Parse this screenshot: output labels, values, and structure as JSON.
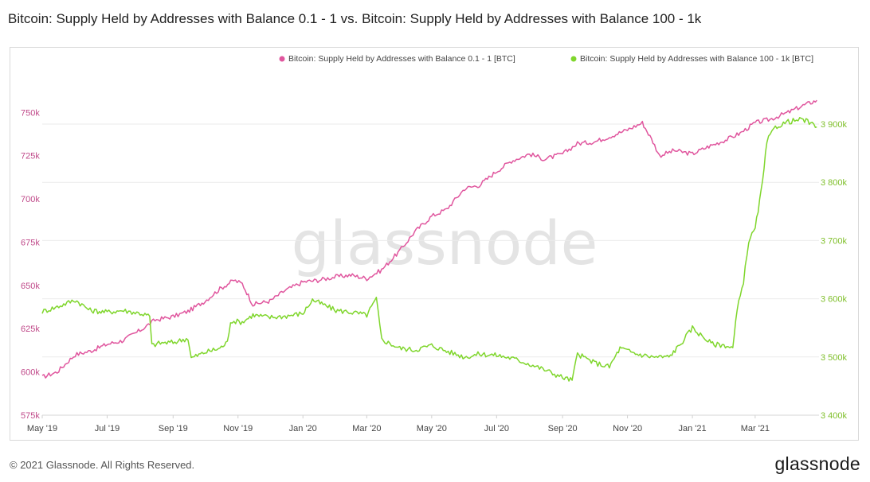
{
  "page": {
    "title": "Bitcoin: Supply Held by Addresses with Balance 0.1 - 1 vs. Bitcoin: Supply Held by Addresses with Balance 100 - 1k",
    "watermark": "glassnode",
    "copyright": "© 2021 Glassnode. All Rights Reserved.",
    "logo": "glassnode"
  },
  "chart_data": {
    "type": "line",
    "x_ticks": [
      "May '19",
      "Jul '19",
      "Sep '19",
      "Nov '19",
      "Jan '20",
      "Mar '20",
      "May '20",
      "Jul '20",
      "Sep '20",
      "Nov '20",
      "Jan '21",
      "Mar '21"
    ],
    "x_range": [
      "2019-05-01",
      "2021-04-30"
    ],
    "y_left": {
      "ticks": [
        "575k",
        "600k",
        "625k",
        "650k",
        "675k",
        "700k",
        "725k",
        "750k"
      ],
      "range": [
        575000,
        752000
      ]
    },
    "y_right": {
      "ticks": [
        "3 400k",
        "3 500k",
        "3 600k",
        "3 700k",
        "3 800k",
        "3 900k"
      ],
      "range": [
        3400000,
        3900000
      ]
    },
    "grid": true,
    "legend_position": "top-right",
    "series": [
      {
        "name": "Bitcoin: Supply Held by Addresses with Balance 0.1 - 1 [BTC]",
        "axis": "left",
        "color": "#e0569e",
        "points": [
          [
            "2019-05-01",
            597000
          ],
          [
            "2019-05-15",
            600000
          ],
          [
            "2019-06-01",
            610000
          ],
          [
            "2019-06-15",
            612000
          ],
          [
            "2019-07-01",
            616000
          ],
          [
            "2019-07-15",
            618000
          ],
          [
            "2019-08-01",
            624000
          ],
          [
            "2019-08-15",
            630000
          ],
          [
            "2019-09-01",
            632000
          ],
          [
            "2019-09-15",
            635000
          ],
          [
            "2019-10-01",
            641000
          ],
          [
            "2019-10-15",
            648000
          ],
          [
            "2019-10-28",
            653000
          ],
          [
            "2019-11-05",
            651000
          ],
          [
            "2019-11-15",
            639000
          ],
          [
            "2019-12-01",
            641000
          ],
          [
            "2019-12-15",
            647000
          ],
          [
            "2020-01-01",
            652000
          ],
          [
            "2020-01-15",
            653000
          ],
          [
            "2020-02-01",
            655000
          ],
          [
            "2020-02-15",
            656000
          ],
          [
            "2020-03-01",
            654000
          ],
          [
            "2020-03-15",
            659000
          ],
          [
            "2020-04-01",
            670000
          ],
          [
            "2020-04-15",
            681000
          ],
          [
            "2020-05-01",
            690000
          ],
          [
            "2020-05-15",
            694000
          ],
          [
            "2020-06-01",
            706000
          ],
          [
            "2020-06-15",
            708000
          ],
          [
            "2020-07-01",
            716000
          ],
          [
            "2020-07-15",
            722000
          ],
          [
            "2020-08-01",
            726000
          ],
          [
            "2020-08-15",
            723000
          ],
          [
            "2020-09-01",
            726000
          ],
          [
            "2020-09-15",
            732000
          ],
          [
            "2020-10-01",
            733000
          ],
          [
            "2020-10-15",
            736000
          ],
          [
            "2020-11-01",
            740000
          ],
          [
            "2020-11-15",
            744000
          ],
          [
            "2020-11-25",
            733000
          ],
          [
            "2020-12-01",
            725000
          ],
          [
            "2020-12-15",
            728000
          ],
          [
            "2021-01-01",
            726000
          ],
          [
            "2021-01-15",
            730000
          ],
          [
            "2021-02-01",
            734000
          ],
          [
            "2021-02-15",
            738000
          ],
          [
            "2021-03-01",
            744000
          ],
          [
            "2021-03-15",
            746000
          ],
          [
            "2021-04-01",
            750000
          ],
          [
            "2021-04-15",
            754000
          ],
          [
            "2021-04-28",
            757000
          ]
        ]
      },
      {
        "name": "Bitcoin: Supply Held by Addresses with Balance 100 - 1k [BTC]",
        "axis": "right",
        "color": "#7fd62c",
        "points": [
          [
            "2019-05-01",
            3578000
          ],
          [
            "2019-05-15",
            3586000
          ],
          [
            "2019-06-01",
            3598000
          ],
          [
            "2019-06-15",
            3580000
          ],
          [
            "2019-07-01",
            3577000
          ],
          [
            "2019-07-15",
            3580000
          ],
          [
            "2019-08-01",
            3575000
          ],
          [
            "2019-08-10",
            3570000
          ],
          [
            "2019-08-12",
            3520000
          ],
          [
            "2019-08-20",
            3524000
          ],
          [
            "2019-09-01",
            3525000
          ],
          [
            "2019-09-15",
            3532000
          ],
          [
            "2019-09-18",
            3498000
          ],
          [
            "2019-10-01",
            3508000
          ],
          [
            "2019-10-15",
            3515000
          ],
          [
            "2019-10-22",
            3525000
          ],
          [
            "2019-10-25",
            3562000
          ],
          [
            "2019-11-05",
            3560000
          ],
          [
            "2019-11-15",
            3572000
          ],
          [
            "2019-12-01",
            3568000
          ],
          [
            "2019-12-15",
            3570000
          ],
          [
            "2020-01-01",
            3575000
          ],
          [
            "2020-01-10",
            3598000
          ],
          [
            "2020-01-20",
            3590000
          ],
          [
            "2020-02-01",
            3580000
          ],
          [
            "2020-02-15",
            3577000
          ],
          [
            "2020-03-01",
            3572000
          ],
          [
            "2020-03-10",
            3600000
          ],
          [
            "2020-03-15",
            3530000
          ],
          [
            "2020-04-01",
            3515000
          ],
          [
            "2020-04-15",
            3512000
          ],
          [
            "2020-05-01",
            3520000
          ],
          [
            "2020-05-15",
            3510000
          ],
          [
            "2020-06-01",
            3500000
          ],
          [
            "2020-06-15",
            3505000
          ],
          [
            "2020-07-01",
            3503000
          ],
          [
            "2020-07-15",
            3498000
          ],
          [
            "2020-08-01",
            3488000
          ],
          [
            "2020-08-15",
            3478000
          ],
          [
            "2020-09-01",
            3465000
          ],
          [
            "2020-09-10",
            3460000
          ],
          [
            "2020-09-15",
            3505000
          ],
          [
            "2020-10-01",
            3490000
          ],
          [
            "2020-10-15",
            3483000
          ],
          [
            "2020-10-25",
            3515000
          ],
          [
            "2020-11-10",
            3505000
          ],
          [
            "2020-11-25",
            3500000
          ],
          [
            "2020-12-10",
            3500000
          ],
          [
            "2020-12-20",
            3520000
          ],
          [
            "2021-01-01",
            3550000
          ],
          [
            "2021-01-10",
            3536000
          ],
          [
            "2021-01-20",
            3522000
          ],
          [
            "2021-02-01",
            3520000
          ],
          [
            "2021-02-08",
            3515000
          ],
          [
            "2021-02-12",
            3580000
          ],
          [
            "2021-02-18",
            3630000
          ],
          [
            "2021-02-23",
            3700000
          ],
          [
            "2021-03-01",
            3720000
          ],
          [
            "2021-03-08",
            3800000
          ],
          [
            "2021-03-12",
            3870000
          ],
          [
            "2021-03-20",
            3895000
          ],
          [
            "2021-04-01",
            3904000
          ],
          [
            "2021-04-15",
            3908000
          ],
          [
            "2021-04-28",
            3895000
          ]
        ]
      }
    ]
  }
}
